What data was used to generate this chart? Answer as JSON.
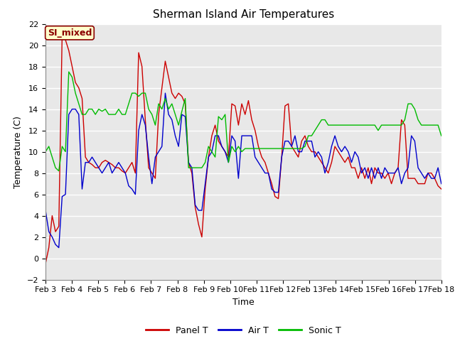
{
  "title": "Sherman Island Air Temperatures",
  "xlabel": "Time",
  "ylabel": "Temperature (C)",
  "ylim": [
    -2,
    22
  ],
  "yticks": [
    -2,
    0,
    2,
    4,
    6,
    8,
    10,
    12,
    14,
    16,
    18,
    20,
    22
  ],
  "xtick_labels": [
    "Feb 3",
    "Feb 4",
    "Feb 5",
    "Feb 6",
    "Feb 7",
    "Feb 8",
    "Feb 9",
    "Feb 10",
    "Feb 11",
    "Feb 12",
    "Feb 13",
    "Feb 14",
    "Feb 15",
    "Feb 16",
    "Feb 17",
    "Feb 18"
  ],
  "panel_t_color": "#cc0000",
  "air_t_color": "#0000cc",
  "sonic_t_color": "#00bb00",
  "bg_color": "#e8e8e8",
  "fig_color": "#ffffff",
  "annotation_text": "SI_mixed",
  "annotation_bg": "#ffffcc",
  "annotation_border": "#8b0000",
  "legend_labels": [
    "Panel T",
    "Air T",
    "Sonic T"
  ],
  "title_fontsize": 11,
  "axis_label_fontsize": 9,
  "tick_fontsize": 8,
  "panel_t": [
    -0.5,
    1.0,
    4.0,
    2.5,
    3.0,
    21.0,
    20.5,
    19.5,
    18.0,
    16.5,
    16.0,
    15.0,
    9.5,
    9.0,
    8.8,
    8.5,
    8.5,
    9.0,
    9.2,
    9.0,
    8.8,
    8.5,
    8.5,
    8.2,
    8.0,
    8.5,
    9.0,
    8.0,
    19.3,
    18.0,
    13.0,
    8.5,
    8.0,
    7.5,
    13.5,
    16.0,
    18.5,
    17.0,
    15.5,
    15.0,
    15.5,
    15.2,
    14.5,
    9.0,
    8.0,
    4.8,
    3.2,
    2.0,
    6.5,
    9.5,
    11.5,
    12.5,
    11.0,
    10.5,
    10.0,
    9.5,
    14.5,
    14.3,
    12.5,
    14.5,
    13.5,
    14.8,
    13.0,
    12.0,
    10.5,
    9.5,
    9.0,
    8.0,
    7.0,
    5.8,
    5.6,
    9.5,
    14.3,
    14.5,
    10.5,
    10.0,
    9.5,
    11.0,
    11.5,
    10.5,
    10.0,
    10.0,
    9.5,
    9.0,
    8.5,
    8.0,
    9.0,
    10.5,
    10.0,
    9.5,
    9.0,
    9.5,
    8.5,
    8.5,
    7.5,
    8.5,
    7.5,
    8.5,
    7.0,
    8.5,
    8.0,
    8.0,
    7.5,
    8.0,
    7.0,
    8.0,
    8.5,
    13.0,
    12.5,
    7.5,
    7.5,
    7.5,
    7.0,
    7.0,
    7.0,
    8.0,
    8.0,
    7.5,
    6.8,
    6.5
  ],
  "air_t": [
    4.5,
    2.5,
    2.0,
    1.3,
    1.0,
    5.8,
    6.0,
    13.5,
    14.0,
    14.0,
    13.5,
    6.5,
    9.0,
    9.0,
    9.5,
    9.0,
    8.5,
    8.0,
    8.5,
    9.0,
    8.0,
    8.5,
    9.0,
    8.5,
    8.0,
    6.8,
    6.5,
    6.0,
    12.0,
    13.5,
    12.5,
    9.5,
    7.0,
    9.5,
    10.0,
    10.5,
    15.5,
    13.5,
    13.0,
    11.5,
    10.5,
    13.5,
    13.3,
    9.0,
    8.5,
    5.0,
    4.5,
    4.5,
    7.0,
    9.5,
    10.0,
    11.5,
    11.5,
    10.5,
    10.0,
    9.0,
    11.5,
    11.0,
    7.5,
    11.5,
    11.5,
    11.5,
    11.5,
    9.5,
    9.0,
    8.5,
    8.0,
    8.0,
    6.5,
    6.2,
    6.2,
    9.5,
    11.0,
    11.0,
    10.5,
    11.5,
    10.0,
    10.0,
    11.0,
    11.0,
    11.0,
    9.5,
    10.0,
    9.5,
    8.0,
    9.0,
    10.5,
    11.5,
    10.5,
    10.0,
    10.5,
    10.0,
    9.0,
    10.0,
    9.5,
    8.0,
    8.5,
    7.5,
    8.5,
    7.5,
    8.5,
    7.5,
    8.5,
    8.0,
    8.0,
    8.0,
    8.5,
    7.0,
    8.0,
    8.5,
    11.5,
    11.0,
    8.5,
    8.0,
    7.5,
    8.0,
    7.5,
    7.5,
    8.5,
    7.0
  ],
  "sonic_t": [
    10.0,
    10.5,
    9.5,
    8.5,
    8.2,
    10.5,
    10.0,
    17.5,
    17.0,
    15.5,
    14.5,
    13.5,
    13.5,
    14.0,
    14.0,
    13.5,
    14.0,
    13.8,
    14.0,
    13.5,
    13.5,
    13.5,
    14.0,
    13.5,
    13.5,
    14.5,
    15.5,
    15.5,
    15.2,
    15.5,
    15.5,
    14.0,
    13.5,
    12.5,
    14.5,
    14.0,
    15.0,
    14.0,
    14.5,
    13.5,
    12.5,
    13.8,
    15.0,
    8.5,
    8.5,
    8.5,
    8.5,
    8.5,
    9.0,
    10.5,
    10.0,
    9.5,
    13.3,
    13.0,
    13.5,
    9.0,
    10.5,
    10.0,
    10.5,
    10.0,
    10.3,
    10.3,
    10.3,
    10.3,
    10.3,
    10.3,
    10.3,
    10.3,
    10.3,
    10.3,
    10.3,
    10.3,
    10.3,
    10.3,
    10.3,
    10.3,
    10.3,
    10.3,
    10.5,
    11.5,
    11.5,
    12.0,
    12.5,
    13.0,
    13.0,
    12.5,
    12.5,
    12.5,
    12.5,
    12.5,
    12.5,
    12.5,
    12.5,
    12.5,
    12.5,
    12.5,
    12.5,
    12.5,
    12.5,
    12.5,
    12.0,
    12.5,
    12.5,
    12.5,
    12.5,
    12.5,
    12.5,
    12.5,
    13.0,
    14.5,
    14.5,
    14.0,
    13.0,
    12.5,
    12.5,
    12.5,
    12.5,
    12.5,
    12.5,
    11.5
  ]
}
